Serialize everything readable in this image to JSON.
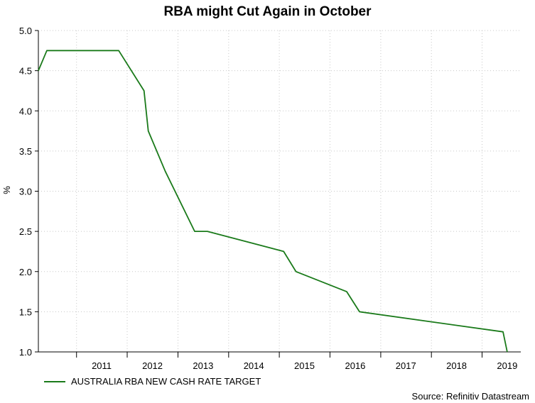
{
  "colors": {
    "series": "#1a7a1a",
    "grid": "#c8c8c8",
    "axis": "#000000"
  },
  "chart_data": {
    "type": "line",
    "title": "RBA might Cut Again in October",
    "ylabel": "%",
    "xlabel": "",
    "ylim": [
      1.0,
      5.0
    ],
    "xlim": [
      "2010-04-01",
      "2019-10-07"
    ],
    "yticks": [
      "1.0",
      "1.5",
      "2.0",
      "2.5",
      "3.0",
      "3.5",
      "4.0",
      "4.5",
      "5.0"
    ],
    "xticks": [
      {
        "label": "2011",
        "date": "2011-07-01"
      },
      {
        "label": "2012",
        "date": "2012-07-01"
      },
      {
        "label": "2013",
        "date": "2013-07-01"
      },
      {
        "label": "2014",
        "date": "2014-07-01"
      },
      {
        "label": "2015",
        "date": "2015-07-01"
      },
      {
        "label": "2016",
        "date": "2016-07-01"
      },
      {
        "label": "2017",
        "date": "2017-07-01"
      },
      {
        "label": "2018",
        "date": "2018-07-01"
      },
      {
        "label": "2019",
        "date": "2019-07-01"
      }
    ],
    "grid": true,
    "legend_position": "bottom-left",
    "series": [
      {
        "name": "AUSTRALIA RBA NEW CASH RATE TARGET",
        "points": [
          {
            "x": "2010-04-01",
            "y": 4.5
          },
          {
            "x": "2010-06-01",
            "y": 4.75
          },
          {
            "x": "2011-11-01",
            "y": 4.75
          },
          {
            "x": "2012-05-01",
            "y": 4.25
          },
          {
            "x": "2012-06-01",
            "y": 3.75
          },
          {
            "x": "2012-10-01",
            "y": 3.25
          },
          {
            "x": "2013-05-01",
            "y": 2.5
          },
          {
            "x": "2013-08-01",
            "y": 2.5
          },
          {
            "x": "2015-02-01",
            "y": 2.25
          },
          {
            "x": "2015-05-01",
            "y": 2.0
          },
          {
            "x": "2016-05-01",
            "y": 1.75
          },
          {
            "x": "2016-08-01",
            "y": 1.5
          },
          {
            "x": "2019-06-01",
            "y": 1.25
          },
          {
            "x": "2019-07-01",
            "y": 1.0
          }
        ]
      }
    ],
    "source": "Source: Refinitiv Datastream"
  }
}
